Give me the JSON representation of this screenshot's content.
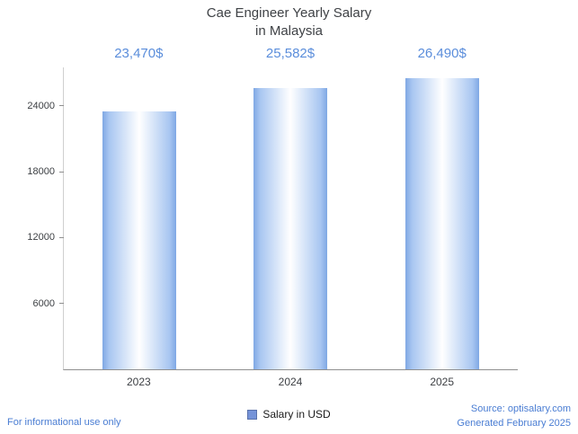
{
  "title": {
    "line1": "Cae Engineer Yearly Salary",
    "line2": "in Malaysia"
  },
  "chart_data": {
    "type": "bar",
    "categories": [
      "2023",
      "2024",
      "2025"
    ],
    "values": [
      23470,
      25582,
      26490
    ],
    "value_labels": [
      "23,470$",
      "25,582$",
      "26,490$"
    ],
    "yticks": [
      6000,
      12000,
      18000,
      24000
    ],
    "ylim": [
      0,
      27500
    ],
    "grid": false,
    "legend_position": "bottom",
    "series_name": "Salary in USD",
    "bar_edge_color": "#7fa8e4",
    "bar_center_color": "#ffffff",
    "value_label_color": "#5a8ddb"
  },
  "legend": {
    "label": "Salary in USD",
    "swatch_color": "#7593d8"
  },
  "footer": {
    "left_note": "For informational use only",
    "source": "Source: optisalary.com",
    "generated": "Generated February 2025",
    "link_color": "#4a7dd3"
  }
}
